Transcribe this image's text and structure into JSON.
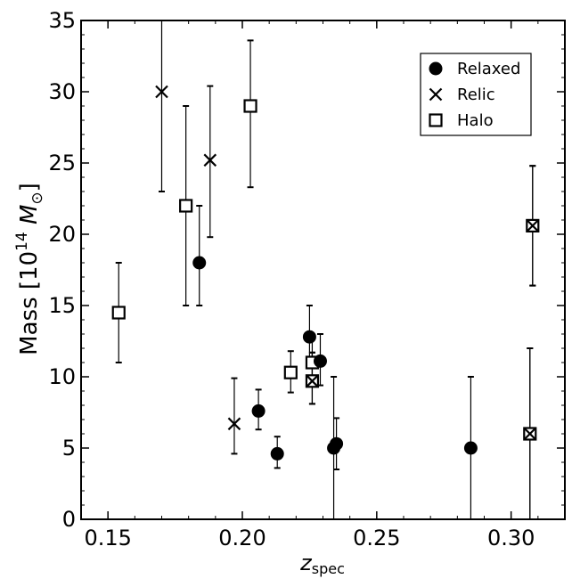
{
  "chart_data": {
    "type": "scatter",
    "title": "",
    "xlabel": "z",
    "xlabel_sub": "spec",
    "ylabel_prefix": "Mass [10",
    "ylabel_exp": "14",
    "ylabel_unit": "M",
    "ylabel_unit_sub": "⊙",
    "ylabel_suffix": "]",
    "xlim": [
      0.14,
      0.32
    ],
    "ylim": [
      0,
      35
    ],
    "xticks": [
      0.15,
      0.2,
      0.25,
      0.3
    ],
    "xtick_labels": [
      "0.15",
      "0.20",
      "0.25",
      "0.30"
    ],
    "yticks": [
      0,
      5,
      10,
      15,
      20,
      25,
      30,
      35
    ],
    "ytick_labels": [
      "0",
      "5",
      "10",
      "15",
      "20",
      "25",
      "30",
      "35"
    ],
    "grid": false,
    "legend_position": "top-right",
    "series": [
      {
        "name": "Relaxed",
        "marker": "filled-circle",
        "points": [
          {
            "x": 0.184,
            "y": 18.0,
            "ylo": 15.0,
            "yhi": 22.0
          },
          {
            "x": 0.206,
            "y": 7.6,
            "ylo": 6.3,
            "yhi": 9.1
          },
          {
            "x": 0.213,
            "y": 4.6,
            "ylo": 3.6,
            "yhi": 5.8
          },
          {
            "x": 0.225,
            "y": 12.8,
            "ylo": 10.6,
            "yhi": 15.0
          },
          {
            "x": 0.229,
            "y": 11.1,
            "ylo": 9.4,
            "yhi": 13.0
          },
          {
            "x": 0.234,
            "y": 5.0,
            "ylo": 0.0,
            "yhi": 10.0
          },
          {
            "x": 0.235,
            "y": 5.3,
            "ylo": 3.5,
            "yhi": 7.1
          },
          {
            "x": 0.285,
            "y": 5.0,
            "ylo": 0.0,
            "yhi": 10.0
          }
        ]
      },
      {
        "name": "Relic",
        "marker": "x",
        "points": [
          {
            "x": 0.17,
            "y": 30.0,
            "ylo": 23.0,
            "yhi": 35.0
          },
          {
            "x": 0.188,
            "y": 25.2,
            "ylo": 19.8,
            "yhi": 30.4
          },
          {
            "x": 0.197,
            "y": 6.7,
            "ylo": 4.6,
            "yhi": 9.9
          },
          {
            "x": 0.226,
            "y": 9.7,
            "ylo": 8.1,
            "yhi": 11.7
          },
          {
            "x": 0.308,
            "y": 20.6,
            "ylo": 16.4,
            "yhi": 24.8
          },
          {
            "x": 0.307,
            "y": 6.0,
            "ylo": 0.0,
            "yhi": 12.0
          }
        ]
      },
      {
        "name": "Halo",
        "marker": "open-square",
        "points": [
          {
            "x": 0.154,
            "y": 14.5,
            "ylo": 11.0,
            "yhi": 18.0
          },
          {
            "x": 0.179,
            "y": 22.0,
            "ylo": 15.0,
            "yhi": 29.0
          },
          {
            "x": 0.203,
            "y": 29.0,
            "ylo": 23.3,
            "yhi": 33.6
          },
          {
            "x": 0.218,
            "y": 10.3,
            "ylo": 8.9,
            "yhi": 11.8
          },
          {
            "x": 0.226,
            "y": 11.0,
            "ylo": 9.5,
            "yhi": 12.8
          },
          {
            "x": 0.226,
            "y": 9.7,
            "ylo": 8.1,
            "yhi": 11.7
          },
          {
            "x": 0.308,
            "y": 20.6,
            "ylo": 16.4,
            "yhi": 24.8
          },
          {
            "x": 0.307,
            "y": 6.0,
            "ylo": 0.0,
            "yhi": 12.0
          }
        ]
      }
    ]
  }
}
